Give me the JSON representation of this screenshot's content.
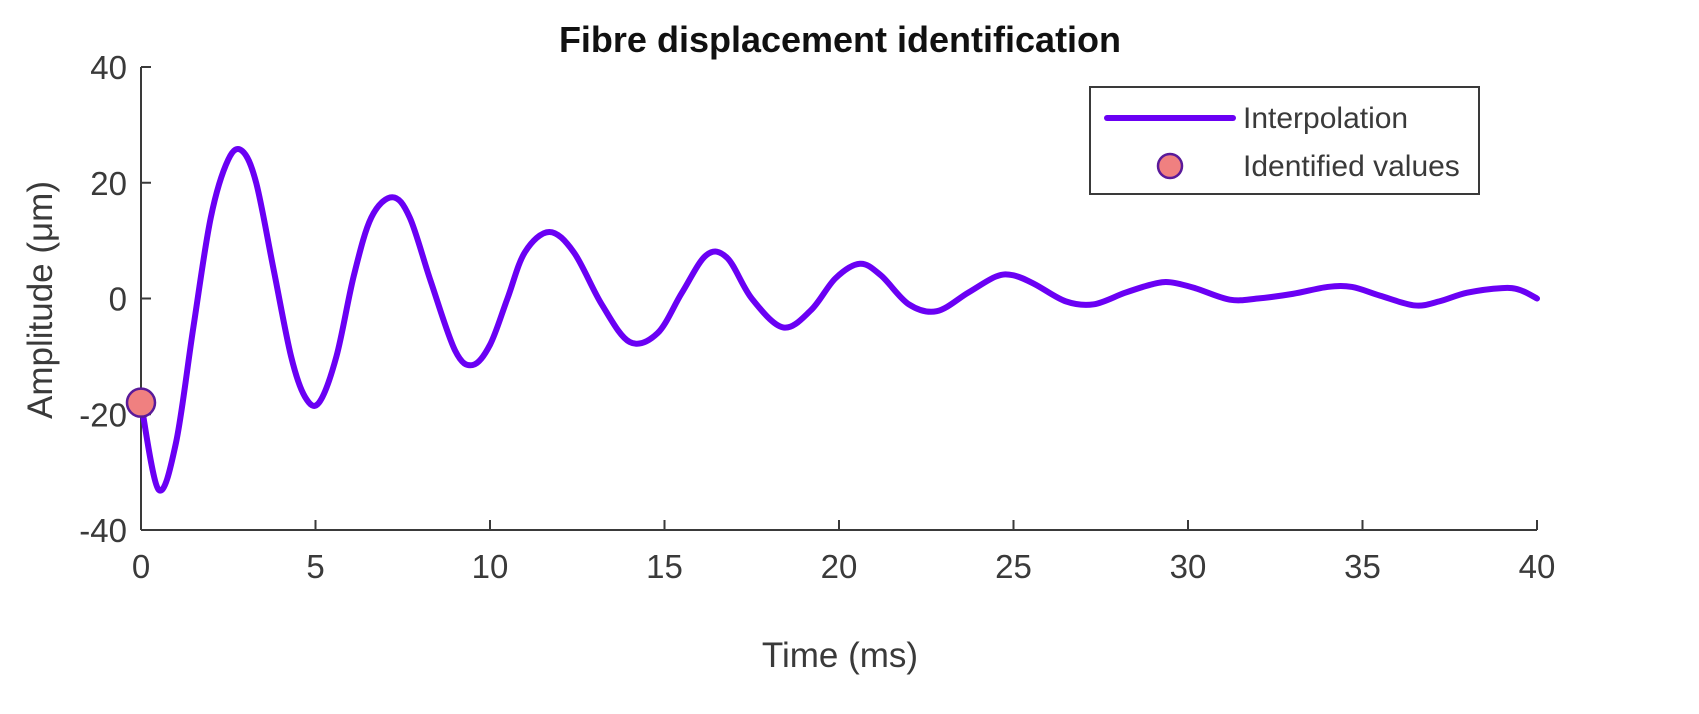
{
  "chart_data": {
    "type": "line",
    "title": "Fibre displacement identification",
    "xlabel": "Time (ms)",
    "ylabel": "Amplitude (μm)",
    "xlim": [
      0,
      40
    ],
    "ylim": [
      -40,
      40
    ],
    "x_ticks": [
      0,
      5,
      10,
      15,
      20,
      25,
      30,
      35,
      40
    ],
    "y_ticks": [
      -40,
      -20,
      0,
      20,
      40
    ],
    "grid": false,
    "legend_position": "top-right",
    "series": [
      {
        "name": "Interpolation",
        "kind": "line",
        "color": "#6a00f4",
        "x": [
          0,
          0.5,
          1.0,
          1.5,
          2.0,
          2.5,
          2.9,
          3.3,
          3.8,
          4.3,
          4.7,
          5.1,
          5.6,
          6.1,
          6.6,
          7.2,
          7.7,
          8.3,
          9.0,
          9.5,
          10.0,
          10.5,
          11.0,
          11.7,
          12.4,
          13.2,
          14.0,
          14.8,
          15.5,
          16.2,
          16.8,
          17.5,
          18.4,
          19.2,
          19.9,
          20.6,
          21.2,
          22.0,
          22.8,
          23.7,
          24.5,
          25.0,
          25.6,
          26.5,
          27.3,
          28.2,
          29.0,
          29.5,
          30.2,
          31.2,
          32.0,
          33.0,
          34.0,
          34.7,
          35.5,
          36.5,
          37.2,
          38.0,
          39.0,
          39.5,
          40.0
        ],
        "y": [
          -18,
          -33,
          -25,
          -5,
          14,
          24,
          25.5,
          20,
          5,
          -10,
          -17,
          -18,
          -10,
          4,
          14,
          17.5,
          14,
          3,
          -9,
          -11.5,
          -8,
          0,
          8,
          11.5,
          8,
          -1,
          -7.5,
          -6,
          1,
          7.5,
          7,
          0,
          -5,
          -2,
          3.5,
          6,
          4,
          -1,
          -2.2,
          1,
          3.8,
          4,
          2.5,
          -0.5,
          -1,
          1,
          2.5,
          2.8,
          1.8,
          -0.2,
          0,
          0.8,
          2,
          2,
          0.5,
          -1.2,
          -0.5,
          1,
          1.8,
          1.5,
          0
        ]
      },
      {
        "name": "Identified values",
        "kind": "scatter",
        "color": "#f08080",
        "edge_color": "#5a1a9a",
        "x": [
          0
        ],
        "y": [
          -18
        ]
      }
    ]
  }
}
